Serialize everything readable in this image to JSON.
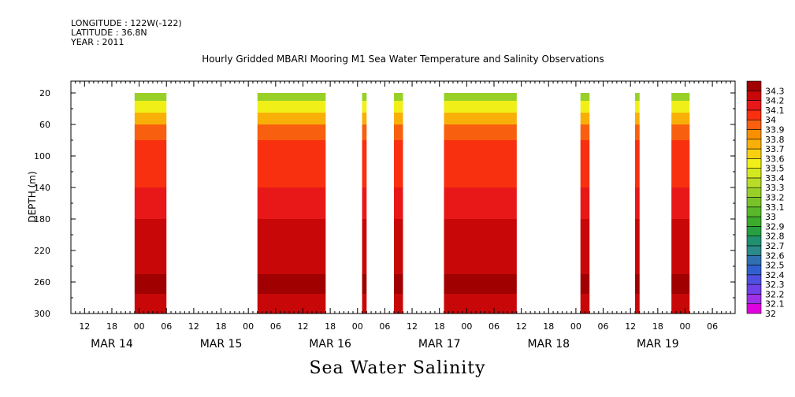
{
  "header": {
    "longitude": "LONGITUDE : 122W(-122)",
    "latitude": "LATITUDE : 36.8N",
    "year": "YEAR : 2011"
  },
  "chart_data": {
    "type": "heatmap",
    "title": "Hourly Gridded MBARI Mooring M1 Sea Water Temperature and Salinity Observations",
    "xlabel": "Sea Water Salinity",
    "ylabel": "DEPTH (m)",
    "y_range": [
      300,
      5
    ],
    "y_ticks": [
      20,
      60,
      100,
      140,
      180,
      220,
      260,
      300
    ],
    "x_range_hours": [
      0,
      146
    ],
    "x_hour_ticks": [
      {
        "h": 3,
        "label": "12"
      },
      {
        "h": 9,
        "label": "18"
      },
      {
        "h": 15,
        "label": "00"
      },
      {
        "h": 21,
        "label": "06"
      },
      {
        "h": 27,
        "label": "12"
      },
      {
        "h": 33,
        "label": "18"
      },
      {
        "h": 39,
        "label": "00"
      },
      {
        "h": 45,
        "label": "06"
      },
      {
        "h": 51,
        "label": "12"
      },
      {
        "h": 57,
        "label": "18"
      },
      {
        "h": 63,
        "label": "00"
      },
      {
        "h": 69,
        "label": "06"
      },
      {
        "h": 75,
        "label": "12"
      },
      {
        "h": 81,
        "label": "18"
      },
      {
        "h": 87,
        "label": "00"
      },
      {
        "h": 93,
        "label": "06"
      },
      {
        "h": 99,
        "label": "12"
      },
      {
        "h": 105,
        "label": "18"
      },
      {
        "h": 111,
        "label": "00"
      },
      {
        "h": 117,
        "label": "06"
      },
      {
        "h": 123,
        "label": "12"
      },
      {
        "h": 129,
        "label": "18"
      },
      {
        "h": 135,
        "label": "00"
      },
      {
        "h": 141,
        "label": "06"
      }
    ],
    "date_labels": [
      {
        "h": 9,
        "label": "MAR 14"
      },
      {
        "h": 33,
        "label": "MAR 15"
      },
      {
        "h": 57,
        "label": "MAR 16"
      },
      {
        "h": 81,
        "label": "MAR 17"
      },
      {
        "h": 105,
        "label": "MAR 18"
      },
      {
        "h": 129,
        "label": "MAR 19"
      }
    ],
    "colorbar": {
      "levels": [
        "32",
        "32.1",
        "32.2",
        "32.3",
        "32.4",
        "32.5",
        "32.6",
        "32.7",
        "32.8",
        "32.9",
        "33",
        "33.1",
        "33.2",
        "33.3",
        "33.4",
        "33.5",
        "33.6",
        "33.7",
        "33.8",
        "33.9",
        "34",
        "34.1",
        "34.2",
        "34.3"
      ],
      "colors": [
        "#e000e0",
        "#a030e8",
        "#7040e8",
        "#5050e0",
        "#3060d0",
        "#3070b0",
        "#2b8a8a",
        "#1f9070",
        "#26a040",
        "#3cac2c",
        "#58b82a",
        "#78c428",
        "#98d028",
        "#b8dc28",
        "#d4e820",
        "#f0f018",
        "#f8d010",
        "#f8b008",
        "#f89000",
        "#f86010",
        "#f83010",
        "#e81818",
        "#c80808",
        "#a00000"
      ]
    },
    "depth_color_rows": [
      {
        "depth": 20,
        "color": "#98d028"
      },
      {
        "depth": 30,
        "color": "#f0f018"
      },
      {
        "depth": 45,
        "color": "#f8b008"
      },
      {
        "depth": 60,
        "color": "#f86010"
      },
      {
        "depth": 80,
        "color": "#f83010"
      },
      {
        "depth": 110,
        "color": "#f83010"
      },
      {
        "depth": 140,
        "color": "#e81818"
      },
      {
        "depth": 180,
        "color": "#c80808"
      },
      {
        "depth": 230,
        "color": "#c80808"
      },
      {
        "depth": 250,
        "color": "#a00000"
      },
      {
        "depth": 275,
        "color": "#c80808"
      }
    ],
    "data_segments_hours": [
      [
        14,
        21
      ],
      [
        41,
        56
      ],
      [
        64,
        65
      ],
      [
        71,
        73
      ],
      [
        82,
        98
      ],
      [
        112,
        114
      ],
      [
        124,
        125
      ],
      [
        132,
        136
      ]
    ]
  }
}
